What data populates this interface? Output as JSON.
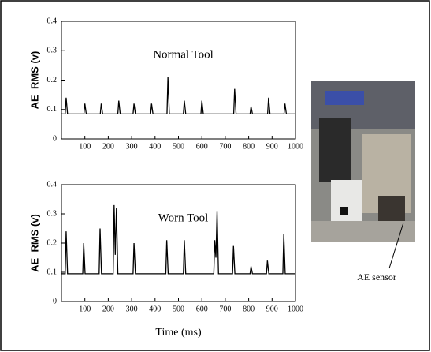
{
  "chart_data": [
    {
      "type": "line",
      "title": "Normal Tool",
      "y_label": "AE_RMS (v)",
      "x": [
        0,
        16,
        20,
        26,
        96,
        100,
        106,
        166,
        170,
        176,
        241,
        245,
        251,
        306,
        310,
        316,
        381,
        385,
        391,
        451,
        455,
        461,
        521,
        525,
        531,
        596,
        600,
        606,
        736,
        740,
        746,
        806,
        810,
        816,
        881,
        885,
        891,
        951,
        955,
        961,
        1000
      ],
      "series": [
        {
          "color": "#000000",
          "values": [
            0.085,
            0.085,
            0.14,
            0.085,
            0.085,
            0.12,
            0.085,
            0.085,
            0.12,
            0.085,
            0.085,
            0.13,
            0.085,
            0.085,
            0.12,
            0.085,
            0.085,
            0.12,
            0.085,
            0.085,
            0.21,
            0.085,
            0.085,
            0.13,
            0.085,
            0.085,
            0.13,
            0.085,
            0.085,
            0.17,
            0.085,
            0.085,
            0.11,
            0.085,
            0.085,
            0.14,
            0.085,
            0.085,
            0.12,
            0.085,
            0.085
          ]
        }
      ],
      "xlim": [
        0,
        1000
      ],
      "xticks": [
        100,
        200,
        300,
        400,
        500,
        600,
        700,
        800,
        900,
        1000
      ],
      "ylim": [
        0,
        0.4
      ],
      "yticks": [
        0,
        0.1,
        0.2,
        0.3,
        0.4
      ]
    },
    {
      "type": "line",
      "title": "Worn Tool",
      "y_label": "AE_RMS (v)",
      "x_label": "Time (ms)",
      "x": [
        0,
        16,
        20,
        26,
        91,
        95,
        101,
        161,
        165,
        171,
        221,
        225,
        230,
        235,
        241,
        306,
        310,
        316,
        446,
        450,
        456,
        521,
        525,
        531,
        651,
        655,
        660,
        665,
        671,
        731,
        735,
        741,
        806,
        810,
        816,
        876,
        880,
        886,
        946,
        950,
        956,
        1000
      ],
      "series": [
        {
          "color": "#000000",
          "values": [
            0.095,
            0.095,
            0.24,
            0.095,
            0.095,
            0.2,
            0.095,
            0.095,
            0.25,
            0.095,
            0.095,
            0.33,
            0.16,
            0.32,
            0.095,
            0.095,
            0.2,
            0.095,
            0.095,
            0.21,
            0.095,
            0.095,
            0.21,
            0.095,
            0.095,
            0.21,
            0.15,
            0.31,
            0.095,
            0.095,
            0.19,
            0.095,
            0.095,
            0.12,
            0.095,
            0.095,
            0.14,
            0.095,
            0.095,
            0.23,
            0.095,
            0.095
          ]
        }
      ],
      "xlim": [
        0,
        1000
      ],
      "xticks": [
        100,
        200,
        300,
        400,
        500,
        600,
        700,
        800,
        900,
        1000
      ],
      "ylim": [
        0,
        0.4
      ],
      "yticks": [
        0,
        0.1,
        0.2,
        0.3,
        0.4
      ]
    }
  ],
  "photo_label": "AE sensor"
}
